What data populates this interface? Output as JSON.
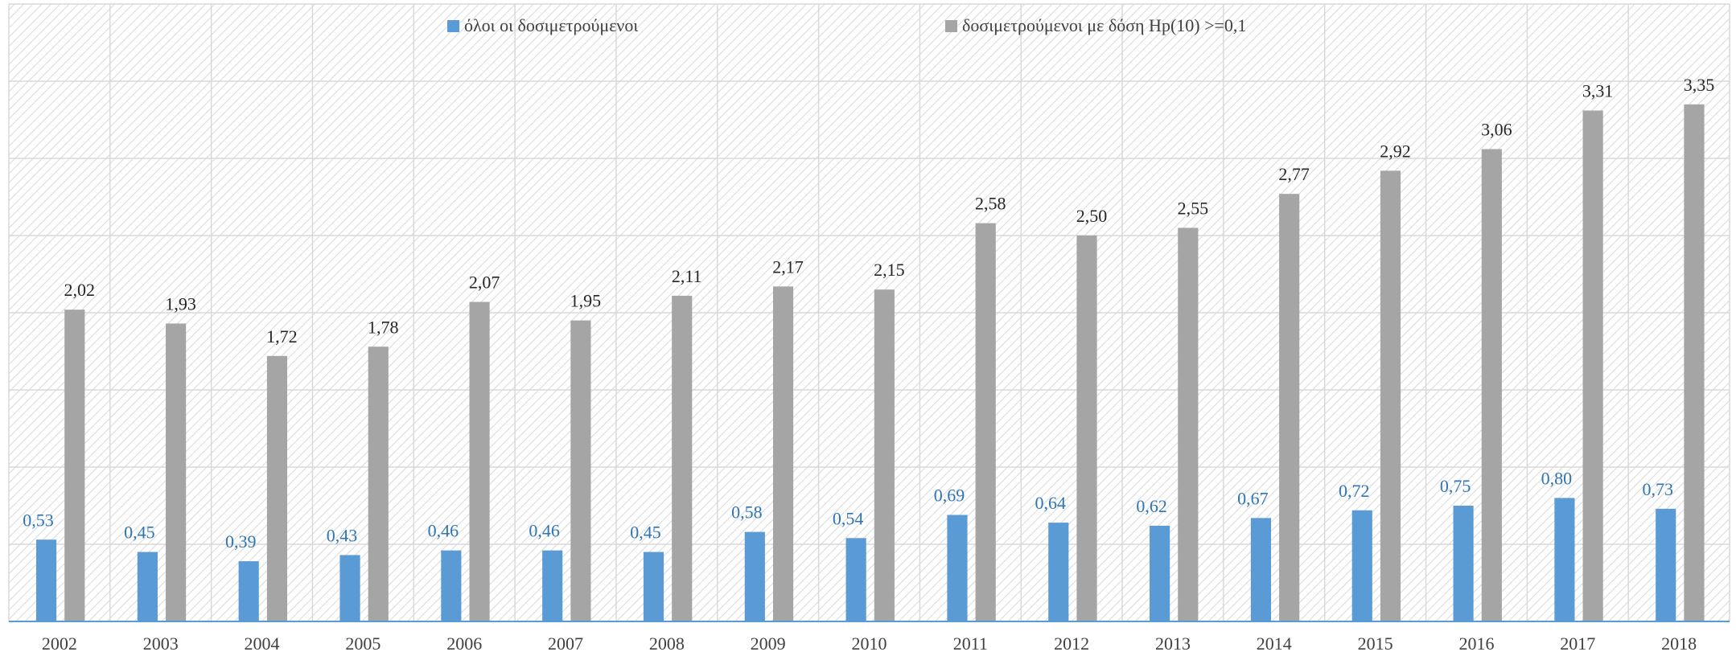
{
  "chart_data": {
    "type": "bar",
    "categories": [
      "2002",
      "2003",
      "2004",
      "2005",
      "2006",
      "2007",
      "2008",
      "2009",
      "2010",
      "2011",
      "2012",
      "2013",
      "2014",
      "2015",
      "2016",
      "2017",
      "2018"
    ],
    "series": [
      {
        "name": "όλοι οι δοσιμετρούμενοι",
        "color": "#5b9bd5",
        "values": [
          0.53,
          0.45,
          0.39,
          0.43,
          0.46,
          0.46,
          0.45,
          0.58,
          0.54,
          0.69,
          0.64,
          0.62,
          0.67,
          0.72,
          0.75,
          0.8,
          0.73
        ],
        "value_labels": [
          "0,53",
          "0,45",
          "0,39",
          "0,43",
          "0,46",
          "0,46",
          "0,45",
          "0,58",
          "0,54",
          "0,69",
          "0,64",
          "0,62",
          "0,67",
          "0,72",
          "0,75",
          "0,80",
          "0,73"
        ]
      },
      {
        "name": "δοσιμετρούμενοι με δόση Hp(10) >=0,1",
        "color": "#a5a5a5",
        "values": [
          2.02,
          1.93,
          1.72,
          1.78,
          2.07,
          1.95,
          2.11,
          2.17,
          2.15,
          2.58,
          2.5,
          2.55,
          2.77,
          2.92,
          3.06,
          3.31,
          3.35
        ],
        "value_labels": [
          "2,02",
          "1,93",
          "1,72",
          "1,78",
          "2,07",
          "1,95",
          "2,11",
          "2,17",
          "2,15",
          "2,58",
          "2,50",
          "2,55",
          "2,77",
          "2,92",
          "3,06",
          "3,31",
          "3,35"
        ]
      }
    ],
    "ylim": [
      0,
      4
    ],
    "yticks": [
      0,
      0.5,
      1,
      1.5,
      2,
      2.5,
      3,
      3.5,
      4
    ],
    "grid": true
  }
}
